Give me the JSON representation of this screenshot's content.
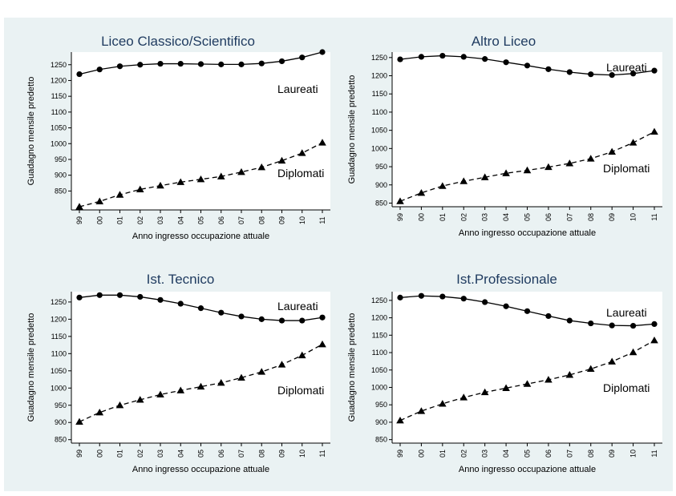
{
  "chart_data": [
    {
      "type": "line",
      "title": "Liceo Classico/Scientifico",
      "xlabel": "Anno ingresso occupazione attuale",
      "ylabel": "Guadagno mensile predetto",
      "categories": [
        "99",
        "00",
        "01",
        "02",
        "03",
        "04",
        "05",
        "06",
        "07",
        "08",
        "09",
        "10",
        "11"
      ],
      "yticks": [
        850,
        900,
        950,
        1000,
        1050,
        1100,
        1150,
        1200,
        1250
      ],
      "ylim": [
        790,
        1290
      ],
      "series": [
        {
          "name": "Laureati",
          "marker": "circle",
          "line": "solid",
          "values": [
            1220,
            1235,
            1245,
            1250,
            1253,
            1253,
            1252,
            1251,
            1251,
            1254,
            1261,
            1273,
            1290
          ]
        },
        {
          "name": "Diplomati",
          "marker": "triangle",
          "line": "dashed",
          "values": [
            800,
            817,
            838,
            855,
            867,
            878,
            887,
            896,
            910,
            925,
            946,
            970,
            1003
          ]
        }
      ]
    },
    {
      "type": "line",
      "title": "Altro Liceo",
      "xlabel": "Anno ingresso occupazione attuale",
      "ylabel": "Guadagno mensile predetto",
      "categories": [
        "99",
        "00",
        "01",
        "02",
        "03",
        "04",
        "05",
        "06",
        "07",
        "08",
        "09",
        "10",
        "11"
      ],
      "yticks": [
        850,
        900,
        950,
        1000,
        1050,
        1100,
        1150,
        1200,
        1250
      ],
      "ylim": [
        840,
        1265
      ],
      "series": [
        {
          "name": "Laureati",
          "marker": "circle",
          "line": "solid",
          "values": [
            1245,
            1252,
            1255,
            1252,
            1246,
            1237,
            1228,
            1218,
            1210,
            1204,
            1202,
            1206,
            1214
          ]
        },
        {
          "name": "Diplomati",
          "marker": "triangle",
          "line": "dashed",
          "values": [
            855,
            878,
            897,
            910,
            921,
            932,
            940,
            949,
            959,
            972,
            991,
            1016,
            1046
          ]
        }
      ]
    },
    {
      "type": "line",
      "title": "Ist. Tecnico",
      "xlabel": "Anno ingresso occupazione attuale",
      "ylabel": "Guadagno mensile predetto",
      "categories": [
        "99",
        "00",
        "01",
        "02",
        "03",
        "04",
        "05",
        "06",
        "07",
        "08",
        "09",
        "10",
        "11"
      ],
      "yticks": [
        850,
        900,
        950,
        1000,
        1050,
        1100,
        1150,
        1200,
        1250
      ],
      "ylim": [
        840,
        1280
      ],
      "series": [
        {
          "name": "Laureati",
          "marker": "circle",
          "line": "solid",
          "values": [
            1263,
            1270,
            1270,
            1265,
            1256,
            1245,
            1232,
            1219,
            1208,
            1200,
            1196,
            1196,
            1205
          ]
        },
        {
          "name": "Diplomati",
          "marker": "triangle",
          "line": "dashed",
          "values": [
            902,
            929,
            950,
            966,
            981,
            993,
            1004,
            1015,
            1030,
            1047,
            1068,
            1095,
            1127
          ]
        }
      ]
    },
    {
      "type": "line",
      "title": "Ist.Professionale",
      "xlabel": "Anno ingresso occupazione attuale",
      "ylabel": "Guadagno mensile predetto",
      "categories": [
        "99",
        "00",
        "01",
        "02",
        "03",
        "04",
        "05",
        "06",
        "07",
        "08",
        "09",
        "10",
        "11"
      ],
      "yticks": [
        850,
        900,
        950,
        1000,
        1050,
        1100,
        1150,
        1200,
        1250
      ],
      "ylim": [
        840,
        1275
      ],
      "series": [
        {
          "name": "Laureati",
          "marker": "circle",
          "line": "solid",
          "values": [
            1258,
            1263,
            1261,
            1255,
            1245,
            1233,
            1219,
            1205,
            1192,
            1184,
            1178,
            1177,
            1182
          ]
        },
        {
          "name": "Diplomati",
          "marker": "triangle",
          "line": "dashed",
          "values": [
            905,
            932,
            953,
            971,
            986,
            998,
            1010,
            1022,
            1036,
            1053,
            1074,
            1101,
            1135
          ]
        }
      ]
    }
  ],
  "colors": {
    "page_background": "#ffffff",
    "figure_background": "#eaf2f3",
    "plot_background": "#ffffff",
    "title": "#1e3a5f",
    "series": "#000000"
  }
}
